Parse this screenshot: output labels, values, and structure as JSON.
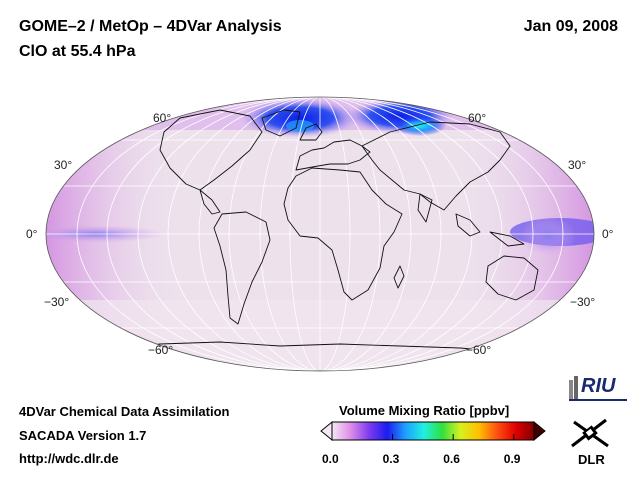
{
  "header": {
    "title_line1": "GOME–2 / MetOp – 4DVar Analysis",
    "title_line2": "ClO at 55.4 hPa",
    "date": "Jan 09, 2008"
  },
  "map": {
    "projection": "Mollweide",
    "lat_labels_left": [
      "60°",
      "30°",
      "0°",
      "−30°",
      "−60°"
    ],
    "lat_labels_right": [
      "60°",
      "30°",
      "0°",
      "−30°",
      "−60°"
    ]
  },
  "footer": {
    "line1": "4DVar Chemical Data Assimilation",
    "line2": "SACADA Version 1.7",
    "line3": "http://wdc.dlr.de"
  },
  "colorbar": {
    "title": "Volume Mixing Ratio [ppbv]",
    "ticks": [
      "0.0",
      "0.3",
      "0.6",
      "0.9"
    ],
    "tick_values": [
      0.0,
      0.3,
      0.6,
      0.9
    ],
    "range": [
      0.0,
      1.0
    ],
    "colors": [
      "#f3e8f3",
      "#e08ee8",
      "#7f3cf0",
      "#1c1cf0",
      "#1ea0ff",
      "#20f0e0",
      "#30e040",
      "#d8f020",
      "#ffc000",
      "#ff5010",
      "#e00000",
      "#800000"
    ]
  },
  "logos": {
    "riu": "RIU",
    "dlr": "DLR"
  }
}
